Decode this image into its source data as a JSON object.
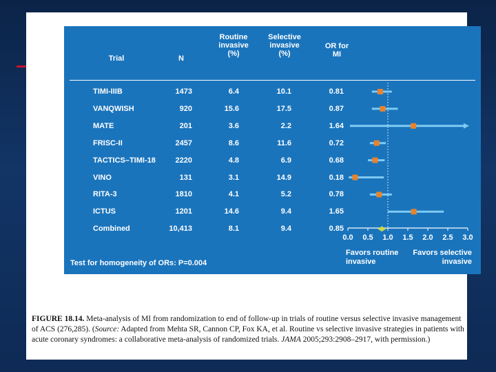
{
  "figure": {
    "headers": {
      "trial": "Trial",
      "n": "N",
      "routine": [
        "Routine",
        "invasive",
        "(%)"
      ],
      "selective": [
        "Selective",
        "invasive",
        "(%)"
      ],
      "or": [
        "OR for",
        "MI"
      ]
    },
    "rows": [
      {
        "trial": "TIMI-IIIB",
        "n": "1473",
        "routine": "6.4",
        "selective": "10.1",
        "or": "0.81"
      },
      {
        "trial": "VANQWISH",
        "n": "920",
        "routine": "15.6",
        "selective": "17.5",
        "or": "0.87"
      },
      {
        "trial": "MATE",
        "n": "201",
        "routine": "3.6",
        "selective": "2.2",
        "or": "1.64"
      },
      {
        "trial": "FRISC-II",
        "n": "2457",
        "routine": "8.6",
        "selective": "11.6",
        "or": "0.72"
      },
      {
        "trial": "TACTICS–TIMI-18",
        "n": "2220",
        "routine": "4.8",
        "selective": "6.9",
        "or": "0.68"
      },
      {
        "trial": "VINO",
        "n": "131",
        "routine": "3.1",
        "selective": "14.9",
        "or": "0.18"
      },
      {
        "trial": "RITA-3",
        "n": "1810",
        "routine": "4.1",
        "selective": "5.2",
        "or": "0.78"
      },
      {
        "trial": "ICTUS",
        "n": "1201",
        "routine": "14.6",
        "selective": "9.4",
        "or": "1.65"
      },
      {
        "trial": "Combined",
        "n": "10,413",
        "routine": "8.1",
        "selective": "9.4",
        "or": "0.85"
      }
    ],
    "favors_routine": [
      "Favors routine",
      "invasive"
    ],
    "favors_selective": [
      "Favors selective",
      "invasive"
    ],
    "homogeneity": "Test for homogeneity of ORs: P=0.004"
  },
  "chart_data": {
    "type": "forest",
    "xlim": [
      0.0,
      3.0
    ],
    "xticks": [
      "0.0",
      "0.5",
      "1.0",
      "1.5",
      "2.0",
      "2.5",
      "3.0"
    ],
    "reference_line": 1.0,
    "points": [
      {
        "label": "TIMI-IIIB",
        "or": 0.81,
        "lo": 0.6,
        "hi": 1.1,
        "arrow": false
      },
      {
        "label": "VANQWISH",
        "or": 0.87,
        "lo": 0.6,
        "hi": 1.25,
        "arrow": false
      },
      {
        "label": "MATE",
        "or": 1.64,
        "lo": 0.05,
        "hi": 3.0,
        "arrow": true
      },
      {
        "label": "FRISC-II",
        "or": 0.72,
        "lo": 0.55,
        "hi": 0.95,
        "arrow": false
      },
      {
        "label": "TACTICS–TIMI-18",
        "or": 0.68,
        "lo": 0.5,
        "hi": 0.92,
        "arrow": false
      },
      {
        "label": "VINO",
        "or": 0.18,
        "lo": 0.02,
        "hi": 0.9,
        "arrow": false
      },
      {
        "label": "RITA-3",
        "or": 0.78,
        "lo": 0.55,
        "hi": 1.1,
        "arrow": false
      },
      {
        "label": "ICTUS",
        "or": 1.65,
        "lo": 1.0,
        "hi": 2.4,
        "arrow": false
      },
      {
        "label": "Combined",
        "or": 0.85,
        "lo": 0.72,
        "hi": 0.99,
        "arrow": false,
        "diamond": true
      }
    ],
    "colors": {
      "marker": "#e8832c",
      "ci": "#7ecbf3",
      "diamond": "#c6da4a",
      "ref": "#ffffff"
    }
  },
  "caption": {
    "label": "FIGURE 18.14.",
    "text1": " Meta-analysis of MI from randomization to end of follow-up in trials of routine versus selective invasive management of ACS (276,285). (",
    "source_label": "Source:",
    "text2": " Adapted from Mehta SR, Cannon CP, Fox KA, et al. Routine vs selective invasive strategies in patients with acute coronary syndromes: a collaborative meta-analysis of randomized trials. ",
    "journal": "JAMA",
    "text3": " 2005;293:2908–2917, with permission.)"
  }
}
